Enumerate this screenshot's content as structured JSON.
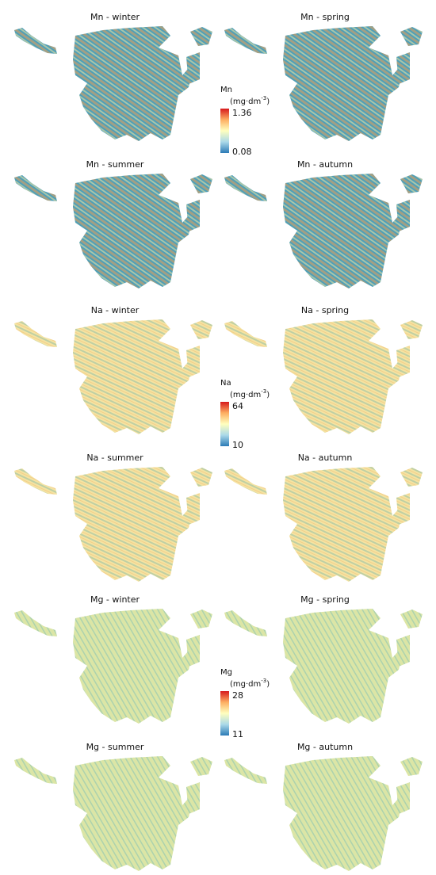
{
  "groups": [
    {
      "legend": {
        "title": "Mn",
        "unit": {
          "open": "(mg·dm",
          "sup": "-3",
          "close": ")"
        },
        "max": 1.36,
        "min": 0.08
      },
      "panels": [
        {
          "title": "Mn - winter"
        },
        {
          "title": "Mn - spring"
        },
        {
          "title": "Mn - summer"
        },
        {
          "title": "Mn - autumn"
        }
      ]
    },
    {
      "legend": {
        "title": "Na",
        "unit": {
          "open": "(mg·dm",
          "sup": "-3",
          "close": ")"
        },
        "max": 64,
        "min": 10
      },
      "panels": [
        {
          "title": "Na - winter"
        },
        {
          "title": "Na - spring"
        },
        {
          "title": "Na - summer"
        },
        {
          "title": "Na - autumn"
        }
      ]
    },
    {
      "legend": {
        "title": "Mg",
        "unit": {
          "open": "(mg·dm",
          "sup": "-3",
          "close": ")"
        },
        "max": 28,
        "min": 11
      },
      "panels": [
        {
          "title": "Mg - winter"
        },
        {
          "title": "Mg - spring"
        },
        {
          "title": "Mg - summer"
        },
        {
          "title": "Mg - autumn"
        }
      ]
    }
  ]
}
